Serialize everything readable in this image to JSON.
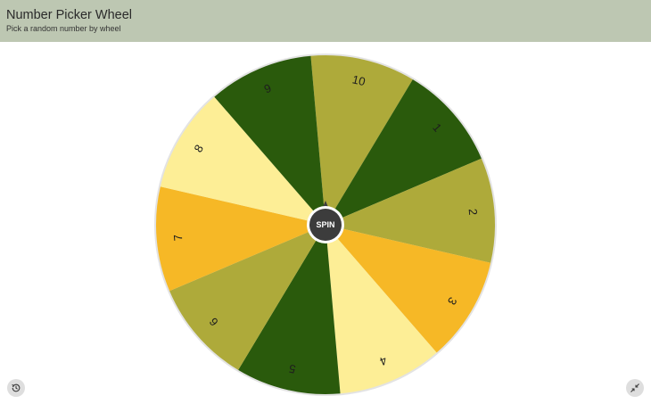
{
  "header": {
    "title": "Number Picker Wheel",
    "subtitle": "Pick a random number by wheel"
  },
  "wheel": {
    "spin_label": "SPIN",
    "segments": [
      {
        "label": "10",
        "color": "#aeaa3a"
      },
      {
        "label": "1",
        "color": "#2a5a0c"
      },
      {
        "label": "2",
        "color": "#aeaa3a"
      },
      {
        "label": "3",
        "color": "#f6b826"
      },
      {
        "label": "4",
        "color": "#fdee96"
      },
      {
        "label": "5",
        "color": "#2a5a0c"
      },
      {
        "label": "6",
        "color": "#aeaa3a"
      },
      {
        "label": "7",
        "color": "#f6b826"
      },
      {
        "label": "8",
        "color": "#fdee96"
      },
      {
        "label": "9",
        "color": "#2a5a0c"
      }
    ],
    "rim_color": "#e3e3e3",
    "hub_color": "#3c3c3c"
  },
  "controls": {
    "history_icon": "history-icon",
    "collapse_icon": "collapse-icon"
  }
}
